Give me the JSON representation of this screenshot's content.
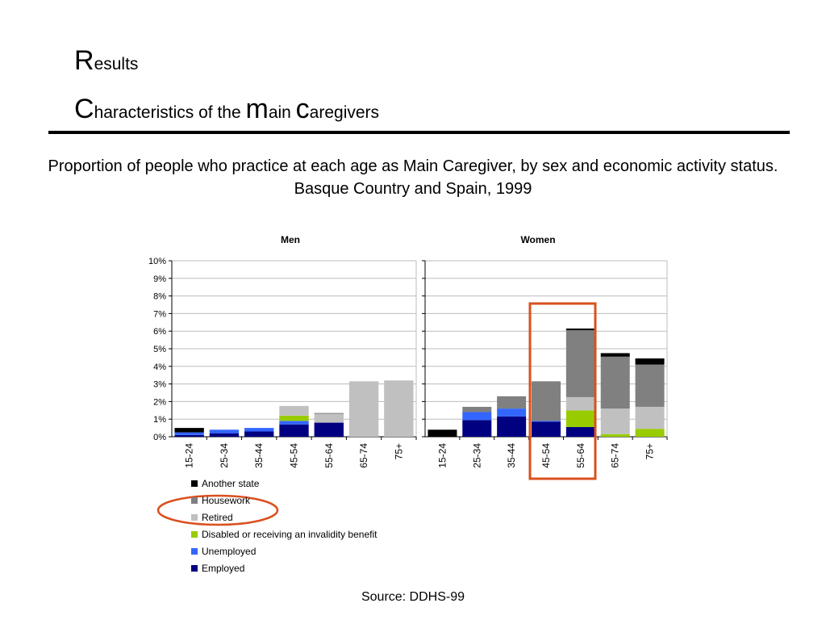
{
  "slide": {
    "title1_initial": "R",
    "title1_rest": "esults",
    "title2_c1": "C",
    "title2_t1": "haracteristics of the ",
    "title2_m": "m",
    "title2_t2": "ain ",
    "title2_c2": "c",
    "title2_t3": "aregivers",
    "subtitle_line1": "Proportion of people who practice at each age as Main Caregiver, by sex and economic activity status.",
    "subtitle_line2": "Basque Country and Spain, 1999",
    "source": "Source: DDHS-99"
  },
  "highlight_color": "#d9501e",
  "chart_data": [
    {
      "type": "bar",
      "stacked": true,
      "title": "Men",
      "categories": [
        "15-24",
        "25-34",
        "35-44",
        "45-54",
        "55-64",
        "65-74",
        "75+"
      ],
      "ylim": [
        0,
        10
      ],
      "yticks": [
        "0%",
        "1%",
        "2%",
        "3%",
        "4%",
        "5%",
        "6%",
        "7%",
        "8%",
        "9%",
        "10%"
      ],
      "grid": true,
      "series": [
        {
          "name": "Employed",
          "color": "#000080",
          "values": [
            0.1,
            0.2,
            0.3,
            0.7,
            0.8,
            0,
            0
          ]
        },
        {
          "name": "Unemployed",
          "color": "#3366ff",
          "values": [
            0.15,
            0.2,
            0.2,
            0.2,
            0,
            0,
            0
          ]
        },
        {
          "name": "Disabled or receiving an invalidity benefit",
          "color": "#99cc00",
          "values": [
            0,
            0,
            0,
            0.3,
            0,
            0,
            0
          ]
        },
        {
          "name": "Retired",
          "color": "#c0c0c0",
          "values": [
            0,
            0,
            0,
            0.55,
            0.5,
            3.15,
            3.2
          ]
        },
        {
          "name": "Housework",
          "color": "#808080",
          "values": [
            0,
            0,
            0,
            0,
            0.05,
            0,
            0
          ]
        },
        {
          "name": "Another state",
          "color": "#000000",
          "values": [
            0.25,
            0,
            0,
            0,
            0,
            0,
            0
          ]
        }
      ]
    },
    {
      "type": "bar",
      "stacked": true,
      "title": "Women",
      "categories": [
        "15-24",
        "25-34",
        "35-44",
        "45-54",
        "55-64",
        "65-74",
        "75+"
      ],
      "ylim": [
        0,
        10
      ],
      "grid": true,
      "series": [
        {
          "name": "Employed",
          "color": "#000080",
          "values": [
            0,
            0.95,
            1.15,
            0.85,
            0.55,
            0,
            0
          ]
        },
        {
          "name": "Unemployed",
          "color": "#3366ff",
          "values": [
            0,
            0.45,
            0.45,
            0.05,
            0,
            0,
            0
          ]
        },
        {
          "name": "Disabled or receiving an invalidity benefit",
          "color": "#99cc00",
          "values": [
            0,
            0,
            0,
            0,
            0.95,
            0.15,
            0.45
          ]
        },
        {
          "name": "Retired",
          "color": "#c0c0c0",
          "values": [
            0,
            0,
            0,
            0,
            0.75,
            1.45,
            1.25
          ]
        },
        {
          "name": "Housework",
          "color": "#808080",
          "values": [
            0,
            0.3,
            0.7,
            2.25,
            3.8,
            2.95,
            2.4
          ]
        },
        {
          "name": "Another state",
          "color": "#000000",
          "values": [
            0.4,
            0,
            0,
            0,
            0.1,
            0.2,
            0.35
          ]
        }
      ]
    }
  ],
  "legend": [
    {
      "label": "Another state",
      "color": "#000000"
    },
    {
      "label": "Housework",
      "color": "#808080"
    },
    {
      "label": "Retired",
      "color": "#c0c0c0"
    },
    {
      "label": "Disabled or receiving an invalidity benefit",
      "color": "#99cc00"
    },
    {
      "label": "Unemployed",
      "color": "#3366ff"
    },
    {
      "label": "Employed",
      "color": "#000080"
    }
  ]
}
